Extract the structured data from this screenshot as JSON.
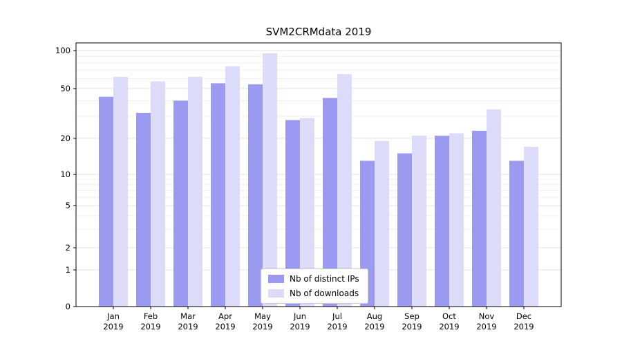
{
  "chart_data": {
    "type": "bar",
    "title": "SVM2CRMdata 2019",
    "categories": [
      "Jan 2019",
      "Feb 2019",
      "Mar 2019",
      "Apr 2019",
      "May 2019",
      "Jun 2019",
      "Jul 2019",
      "Aug 2019",
      "Sep 2019",
      "Oct 2019",
      "Nov 2019",
      "Dec 2019"
    ],
    "month_labels": [
      "Jan",
      "Feb",
      "Mar",
      "Apr",
      "May",
      "Jun",
      "Jul",
      "Aug",
      "Sep",
      "Oct",
      "Nov",
      "Dec"
    ],
    "year_label": "2019",
    "series": [
      {
        "name": "Nb of distinct IPs",
        "color": "#9a9af0",
        "values": [
          43,
          32,
          40,
          55,
          54,
          28,
          42,
          13,
          15,
          21,
          23,
          13
        ]
      },
      {
        "name": "Nb of downloads",
        "color": "#dcdcf8",
        "values": [
          62,
          57,
          62,
          75,
          95,
          29,
          65,
          19,
          21,
          22,
          34,
          17
        ]
      }
    ],
    "yticks": [
      0,
      1,
      2,
      5,
      10,
      20,
      50,
      100
    ],
    "yscale": "symlog",
    "ylim": [
      0,
      110
    ],
    "grid": true,
    "legend_position": "lower center",
    "colors": {
      "axis": "#000000",
      "grid_minor": "#efefef",
      "grid_major": "#e3e3e3"
    }
  }
}
